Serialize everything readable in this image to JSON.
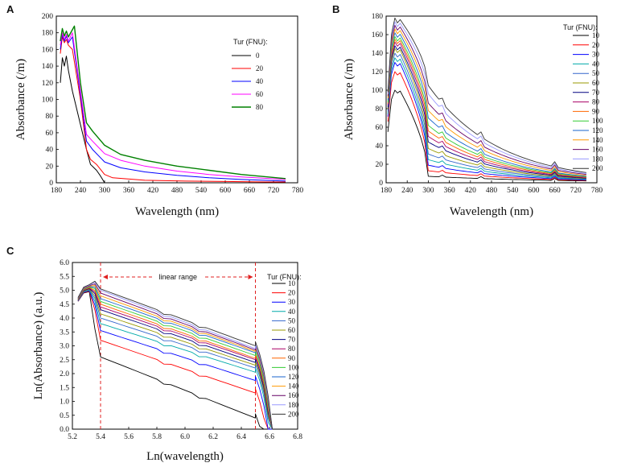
{
  "chart_data": [
    {
      "panel": "A",
      "type": "line",
      "xlabel": "Wavelength (nm)",
      "ylabel": "Absorbance (/m)",
      "xlim": [
        180,
        780
      ],
      "ylim": [
        0,
        200
      ],
      "xticks": [
        180,
        240,
        300,
        360,
        420,
        480,
        540,
        600,
        660,
        720,
        780
      ],
      "yticks": [
        0,
        20,
        40,
        60,
        80,
        100,
        120,
        140,
        160,
        180,
        200
      ],
      "legend_title": "Tur (FNU):",
      "legend_position": "right",
      "series": [
        {
          "name": "0",
          "color": "#000000",
          "points": [
            [
              190,
              120
            ],
            [
              195,
              150
            ],
            [
              200,
              140
            ],
            [
              205,
              152
            ],
            [
              210,
              135
            ],
            [
              220,
              110
            ],
            [
              240,
              70
            ],
            [
              255,
              40
            ],
            [
              265,
              22
            ],
            [
              280,
              15
            ],
            [
              290,
              8
            ],
            [
              300,
              0
            ]
          ]
        },
        {
          "name": "20",
          "color": "#ff0000",
          "points": [
            [
              190,
              155
            ],
            [
              195,
              175
            ],
            [
              200,
              168
            ],
            [
              205,
              172
            ],
            [
              210,
              165
            ],
            [
              220,
              160
            ],
            [
              240,
              100
            ],
            [
              255,
              40
            ],
            [
              265,
              28
            ],
            [
              280,
              22
            ],
            [
              300,
              10
            ],
            [
              320,
              6
            ],
            [
              400,
              3
            ],
            [
              500,
              2
            ],
            [
              600,
              1.5
            ],
            [
              700,
              1
            ],
            [
              750,
              1
            ]
          ]
        },
        {
          "name": "40",
          "color": "#0000ff",
          "points": [
            [
              190,
              160
            ],
            [
              195,
              178
            ],
            [
              200,
              170
            ],
            [
              205,
              176
            ],
            [
              210,
              168
            ],
            [
              220,
              175
            ],
            [
              240,
              105
            ],
            [
              255,
              50
            ],
            [
              270,
              40
            ],
            [
              300,
              25
            ],
            [
              340,
              18
            ],
            [
              400,
              13
            ],
            [
              480,
              9
            ],
            [
              560,
              6
            ],
            [
              640,
              4
            ],
            [
              750,
              2
            ]
          ]
        },
        {
          "name": "60",
          "color": "#ff00ff",
          "points": [
            [
              190,
              165
            ],
            [
              195,
              180
            ],
            [
              200,
              172
            ],
            [
              205,
              178
            ],
            [
              210,
              170
            ],
            [
              220,
              180
            ],
            [
              240,
              110
            ],
            [
              255,
              58
            ],
            [
              270,
              50
            ],
            [
              300,
              35
            ],
            [
              340,
              27
            ],
            [
              400,
              20
            ],
            [
              480,
              14
            ],
            [
              560,
              10
            ],
            [
              640,
              7
            ],
            [
              750,
              4
            ]
          ]
        },
        {
          "name": "80",
          "color": "#008000",
          "points": [
            [
              190,
              170
            ],
            [
              195,
              185
            ],
            [
              200,
              176
            ],
            [
              205,
              182
            ],
            [
              210,
              175
            ],
            [
              225,
              188
            ],
            [
              240,
              120
            ],
            [
              255,
              72
            ],
            [
              270,
              62
            ],
            [
              300,
              45
            ],
            [
              340,
              34
            ],
            [
              400,
              27
            ],
            [
              480,
              20
            ],
            [
              560,
              15
            ],
            [
              640,
              10
            ],
            [
              750,
              5
            ]
          ]
        }
      ]
    },
    {
      "panel": "B",
      "type": "line",
      "xlabel": "Wavelength (nm)",
      "ylabel": "Absorbance (/m)",
      "xlim": [
        180,
        780
      ],
      "ylim": [
        0,
        180
      ],
      "xticks": [
        180,
        240,
        300,
        360,
        420,
        480,
        540,
        600,
        660,
        720,
        780
      ],
      "yticks": [
        0,
        20,
        40,
        60,
        80,
        100,
        120,
        140,
        160,
        180
      ],
      "legend_title": "Tur (FNU):",
      "legend_position": "right",
      "series_names": [
        "10",
        "20",
        "30",
        "40",
        "50",
        "60",
        "70",
        "80",
        "90",
        "100",
        "120",
        "140",
        "160",
        "180",
        "200"
      ],
      "series_colors": [
        "#000000",
        "#ff0000",
        "#0000ff",
        "#00aaaa",
        "#3366cc",
        "#999900",
        "#000080",
        "#aa0066",
        "#ff6600",
        "#33cc33",
        "#1a66cc",
        "#ff9900",
        "#660066",
        "#9999ff",
        "#333333"
      ],
      "peak_values": [
        100,
        120,
        130,
        135,
        140,
        145,
        148,
        152,
        155,
        158,
        162,
        166,
        170,
        174,
        178
      ],
      "tail_values": [
        2,
        2.5,
        3,
        3.5,
        4,
        4.5,
        5,
        5.5,
        6,
        6.5,
        7,
        8,
        9,
        10,
        11
      ],
      "at_300nm": [
        7,
        13,
        19,
        25,
        31,
        37,
        44,
        50,
        56,
        62,
        70,
        78,
        86,
        96,
        105
      ]
    },
    {
      "panel": "C",
      "type": "line",
      "xlabel": "Ln(wavelength)",
      "ylabel": "Ln(Absorbance) (a.u.)",
      "xlim": [
        5.2,
        6.8
      ],
      "ylim": [
        0.0,
        6.0
      ],
      "xticks": [
        5.2,
        5.4,
        5.6,
        5.8,
        6.0,
        6.2,
        6.4,
        6.6,
        6.8
      ],
      "xtick_labels": [
        "5.2",
        "5.4",
        "5.6",
        "5.8",
        "6.0",
        "6.2",
        "6.4",
        "6.6",
        "6.8"
      ],
      "yticks": [
        0.0,
        0.5,
        1.0,
        1.5,
        2.0,
        2.5,
        3.0,
        3.5,
        4.0,
        4.5,
        5.0,
        5.5,
        6.0
      ],
      "ytick_labels": [
        "0.0",
        "0.5",
        "1.0",
        "1.5",
        "2.0",
        "2.5",
        "3.0",
        "3.5",
        "4.0",
        "4.5",
        "5.0",
        "5.5",
        "6.0"
      ],
      "annotation": "linear range",
      "linear_range": [
        5.4,
        6.5
      ],
      "legend_title": "Tur (FNU):",
      "legend_position": "right",
      "series_names": [
        "10",
        "20",
        "30",
        "40",
        "50",
        "60",
        "70",
        "80",
        "90",
        "100",
        "120",
        "140",
        "160",
        "180",
        "200"
      ],
      "series_colors": [
        "#000000",
        "#ff0000",
        "#0000ff",
        "#00aaaa",
        "#3366cc",
        "#999900",
        "#000080",
        "#aa0066",
        "#ff6600",
        "#33cc33",
        "#1a66cc",
        "#ff9900",
        "#660066",
        "#9999ff",
        "#333333"
      ],
      "values_at_5_4": [
        2.6,
        3.2,
        3.55,
        3.8,
        4.0,
        4.15,
        4.3,
        4.4,
        4.5,
        4.6,
        4.7,
        4.8,
        4.9,
        5.0,
        5.05
      ],
      "values_at_6_5": [
        0.4,
        1.3,
        1.75,
        2.05,
        2.2,
        2.3,
        2.4,
        2.5,
        2.55,
        2.65,
        2.75,
        2.8,
        2.85,
        2.9,
        3.0
      ]
    }
  ]
}
